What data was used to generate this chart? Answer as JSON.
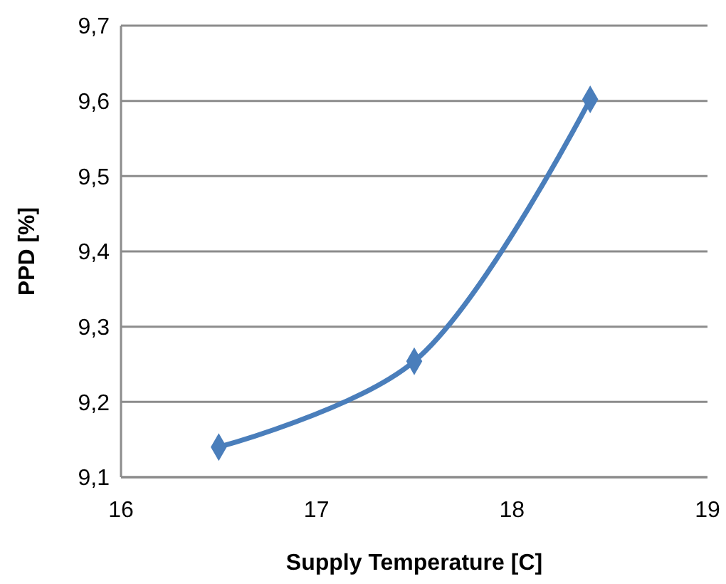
{
  "chart_data": {
    "type": "line",
    "xlabel": "Supply Temperature [C]",
    "ylabel": "PPD [%]",
    "series": [
      {
        "color": "#4a7ebb",
        "x": [
          16.5,
          17.5,
          18.4
        ],
        "values": [
          9.14,
          9.254,
          9.602
        ]
      }
    ],
    "xlim": [
      16,
      19
    ],
    "xticks": [
      16,
      17,
      18,
      19
    ],
    "ylim": [
      9.1,
      9.7
    ],
    "yticks": [
      {
        "value": 9.1,
        "label": "9,1"
      },
      {
        "value": 9.2,
        "label": "9,2"
      },
      {
        "value": 9.3,
        "label": "9,3"
      },
      {
        "value": 9.4,
        "label": "9,4"
      },
      {
        "value": 9.5,
        "label": "9,5"
      },
      {
        "value": 9.6,
        "label": "9,6"
      },
      {
        "value": 9.7,
        "label": "9,7"
      }
    ],
    "grid": "y",
    "marker": "diamond",
    "line_style": "solid"
  }
}
